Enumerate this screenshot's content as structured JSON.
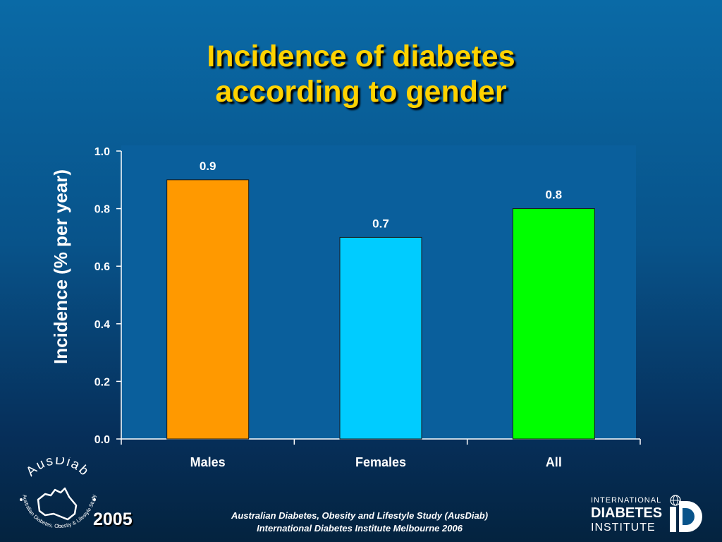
{
  "slide": {
    "title_line1": "Incidence of diabetes",
    "title_line2": "according to gender",
    "year": "2005",
    "footer_line1": "Australian Diabetes, Obesity and Lifestyle Study (AusDiab)",
    "footer_line2": "International Diabetes Institute Melbourne 2006"
  },
  "logos": {
    "ausdiab_text": "AusDiab",
    "ausdiab_subtext": "Australian Diabetes, Obesity & Lifestyle Study",
    "idi_line1": "INTERNATIONAL",
    "idi_line2": "DIABETES",
    "idi_line3": "INSTITUTE"
  },
  "chart_data": {
    "type": "bar",
    "categories": [
      "Males",
      "Females",
      "All"
    ],
    "values": [
      0.9,
      0.7,
      0.8
    ],
    "data_labels": [
      "0.9",
      "0.7",
      "0.8"
    ],
    "bar_colors": [
      "#ff9900",
      "#00ccff",
      "#00ff00"
    ],
    "ylabel": "Incidence (% per year)",
    "xlabel": "",
    "ylim": [
      0,
      1.0
    ],
    "yticks": [
      "0.0",
      "0.2",
      "0.4",
      "0.6",
      "0.8",
      "1.0"
    ],
    "grid": false,
    "legend": "none",
    "plot_background": "#0a5f9c"
  }
}
